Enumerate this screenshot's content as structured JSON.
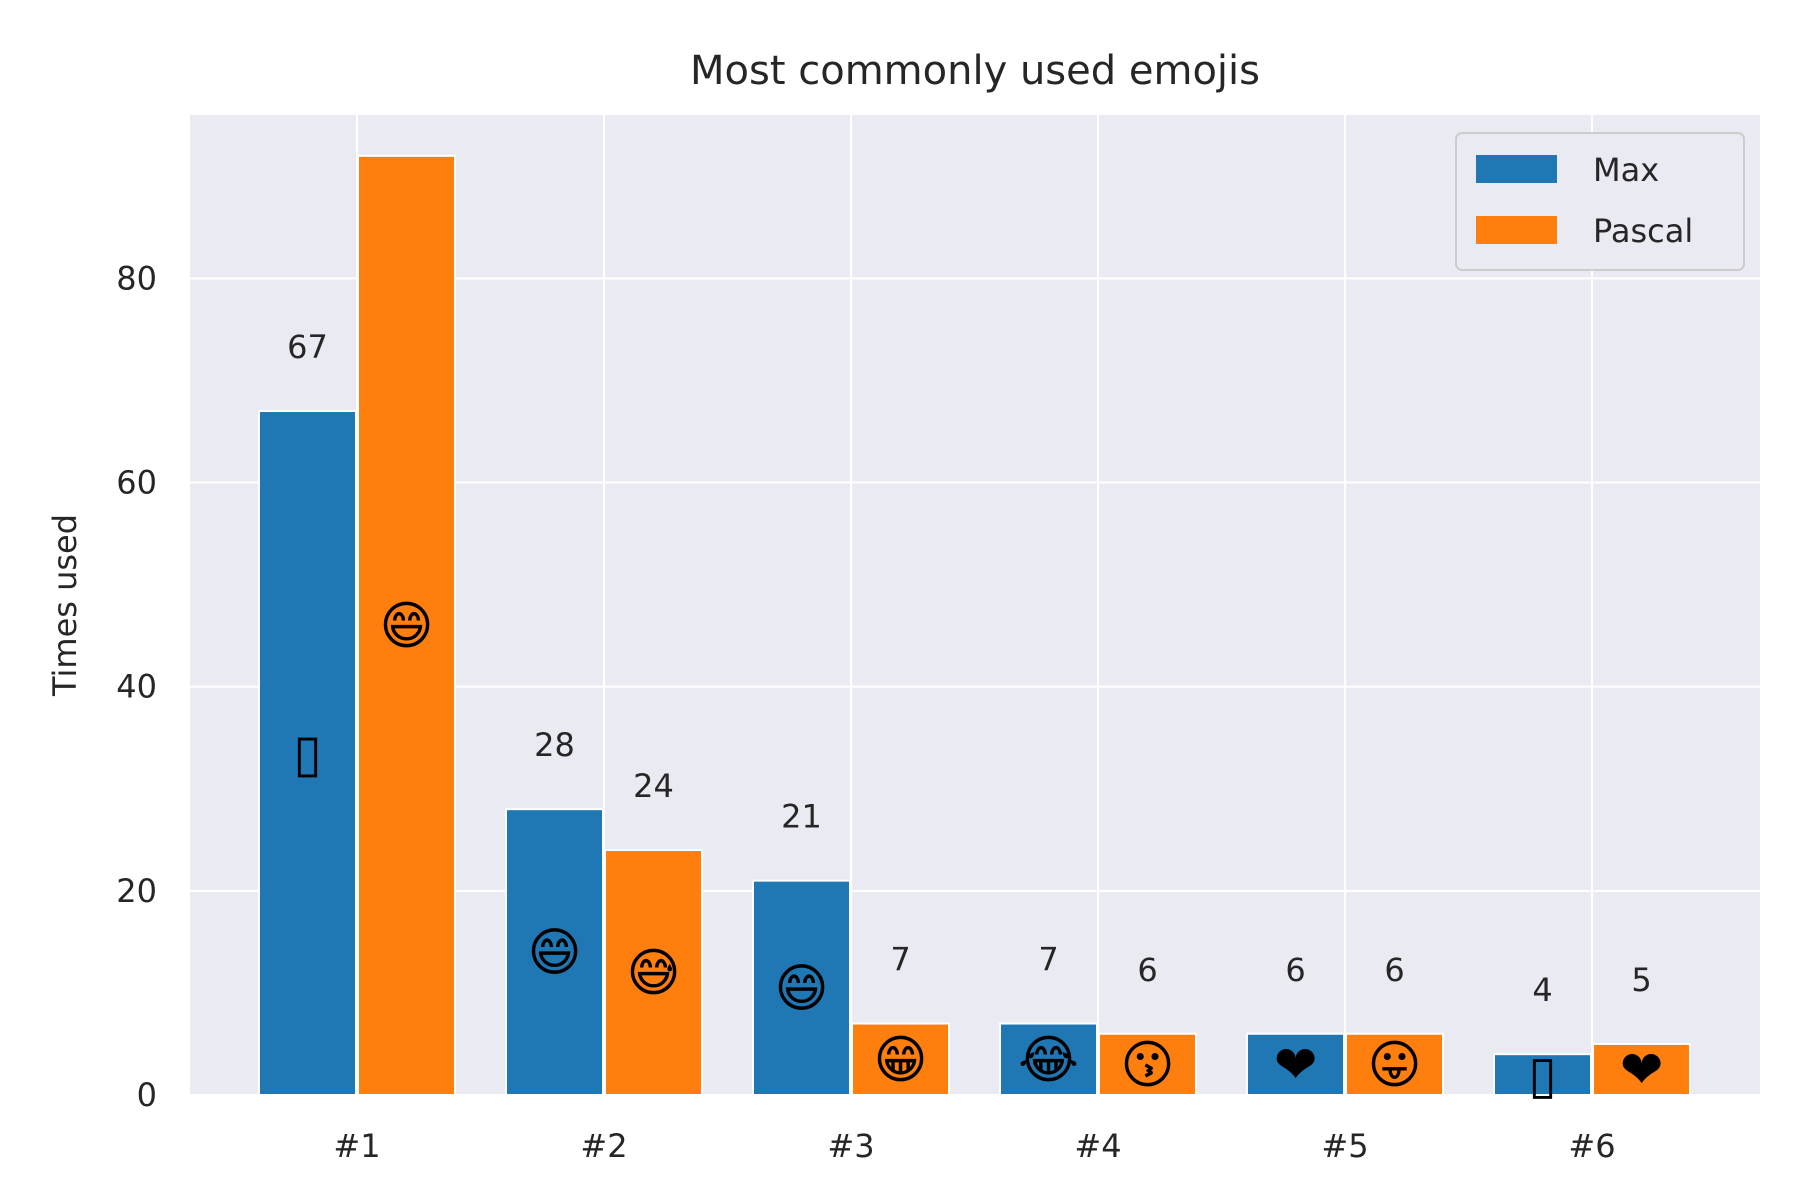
{
  "chart_data": {
    "type": "bar",
    "title": "Most commonly used emojis",
    "xlabel": "",
    "ylabel": "Times used",
    "categories": [
      "#1",
      "#2",
      "#3",
      "#4",
      "#5",
      "#6"
    ],
    "ylim": [
      0,
      96
    ],
    "yticks": [
      0,
      20,
      40,
      60,
      80
    ],
    "grid": true,
    "legend_position": "top-right",
    "series": [
      {
        "name": "Max",
        "color": "#1f77b4",
        "values": [
          67,
          28,
          21,
          7,
          6,
          4
        ],
        "value_labels": [
          "67",
          "28",
          "21",
          "7",
          "6",
          "4"
        ],
        "emojis": [
          "▯",
          "😄",
          "😄",
          "😂",
          "❤",
          "▯"
        ]
      },
      {
        "name": "Pascal",
        "color": "#ff7f0e",
        "values": [
          92,
          24,
          7,
          6,
          6,
          5
        ],
        "value_labels": [
          "",
          "24",
          "7",
          "6",
          "6",
          "5"
        ],
        "emojis": [
          "😄",
          "😅",
          "😁",
          "😗",
          "😛",
          "❤"
        ]
      }
    ]
  },
  "style": {
    "plot_background": "#eaeaf2",
    "grid_color": "#ffffff",
    "text_color": "#262626"
  }
}
